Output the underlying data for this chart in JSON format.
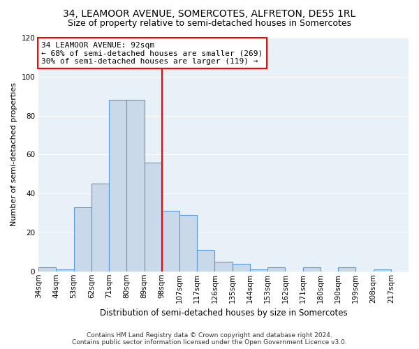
{
  "title": "34, LEAMOOR AVENUE, SOMERCOTES, ALFRETON, DE55 1RL",
  "subtitle": "Size of property relative to semi-detached houses in Somercotes",
  "xlabel_bottom": "Distribution of semi-detached houses by size in Somercotes",
  "ylabel": "Number of semi-detached properties",
  "bin_labels": [
    "34sqm",
    "44sqm",
    "53sqm",
    "62sqm",
    "71sqm",
    "80sqm",
    "89sqm",
    "98sqm",
    "107sqm",
    "117sqm",
    "126sqm",
    "135sqm",
    "144sqm",
    "153sqm",
    "162sqm",
    "171sqm",
    "180sqm",
    "190sqm",
    "199sqm",
    "208sqm",
    "217sqm"
  ],
  "bar_values": [
    2,
    1,
    33,
    45,
    88,
    88,
    56,
    31,
    29,
    11,
    5,
    4,
    1,
    2,
    0,
    2,
    0,
    2,
    0,
    1,
    0
  ],
  "bar_color": "#c9d9ea",
  "bar_edge_color": "#5b9bd5",
  "vline_color": "red",
  "vline_x_index": 7,
  "annotation_line1": "34 LEAMOOR AVENUE: 92sqm",
  "annotation_line2": "← 68% of semi-detached houses are smaller (269)",
  "annotation_line3": "30% of semi-detached houses are larger (119) →",
  "annotation_box_color": "white",
  "annotation_box_edge_color": "red",
  "ylim": [
    0,
    120
  ],
  "yticks": [
    0,
    20,
    40,
    60,
    80,
    100,
    120
  ],
  "background_color": "#e8f0f8",
  "grid_color": "#ffffff",
  "footer": "Contains HM Land Registry data © Crown copyright and database right 2024.\nContains public sector information licensed under the Open Government Licence v3.0.",
  "title_fontsize": 10,
  "subtitle_fontsize": 9,
  "ylabel_fontsize": 8,
  "tick_fontsize": 7.5,
  "annotation_fontsize": 8,
  "footer_fontsize": 6.5,
  "xlabel_fontsize": 8.5
}
